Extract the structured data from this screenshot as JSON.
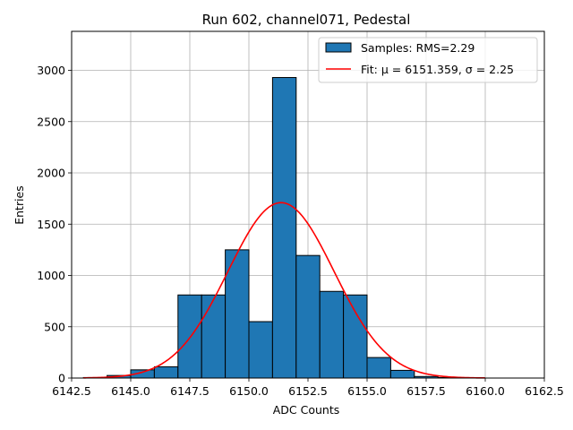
{
  "chart_data": {
    "type": "bar",
    "title": "Run 602, channel071, Pedestal",
    "xlabel": "ADC Counts",
    "ylabel": "Entries",
    "xlim": [
      6142.5,
      6162.5
    ],
    "ylim": [
      0,
      3380
    ],
    "xticks": [
      6142.5,
      6145.0,
      6147.5,
      6150.0,
      6152.5,
      6155.0,
      6157.5,
      6160.0,
      6162.5
    ],
    "xtick_labels": [
      "6142.5",
      "6145.0",
      "6147.5",
      "6150.0",
      "6152.5",
      "6155.0",
      "6157.5",
      "6160.0",
      "6162.5"
    ],
    "yticks": [
      0,
      500,
      1000,
      1500,
      2000,
      2500,
      3000
    ],
    "ytick_labels": [
      "0",
      "500",
      "1000",
      "1500",
      "2000",
      "2500",
      "3000"
    ],
    "grid": true,
    "legend_position": "top-right",
    "histogram": {
      "name": "Samples: RMS=2.29",
      "color": "#1f77b4",
      "edge_color": "#000000",
      "bins": [
        {
          "x0": 6143.0,
          "x1": 6144.0,
          "value": 5
        },
        {
          "x0": 6144.0,
          "x1": 6145.0,
          "value": 25
        },
        {
          "x0": 6145.0,
          "x1": 6146.0,
          "value": 80
        },
        {
          "x0": 6146.0,
          "x1": 6147.0,
          "value": 110
        },
        {
          "x0": 6147.0,
          "x1": 6148.0,
          "value": 810
        },
        {
          "x0": 6148.0,
          "x1": 6149.0,
          "value": 810
        },
        {
          "x0": 6149.0,
          "x1": 6150.0,
          "value": 1250
        },
        {
          "x0": 6150.0,
          "x1": 6151.0,
          "value": 550
        },
        {
          "x0": 6151.0,
          "x1": 6152.0,
          "value": 2930
        },
        {
          "x0": 6152.0,
          "x1": 6153.0,
          "value": 1195
        },
        {
          "x0": 6153.0,
          "x1": 6154.0,
          "value": 845
        },
        {
          "x0": 6154.0,
          "x1": 6155.0,
          "value": 810
        },
        {
          "x0": 6155.0,
          "x1": 6156.0,
          "value": 200
        },
        {
          "x0": 6156.0,
          "x1": 6157.0,
          "value": 75
        },
        {
          "x0": 6157.0,
          "x1": 6158.0,
          "value": 15
        },
        {
          "x0": 6158.0,
          "x1": 6159.0,
          "value": 5
        }
      ]
    },
    "fit": {
      "name": "Fit: μ = 6151.359, σ = 2.25",
      "type": "gaussian",
      "mu": 6151.359,
      "sigma": 2.25,
      "amplitude": 1710,
      "x_range": [
        6143.0,
        6160.0
      ],
      "color": "#ff0000"
    }
  }
}
